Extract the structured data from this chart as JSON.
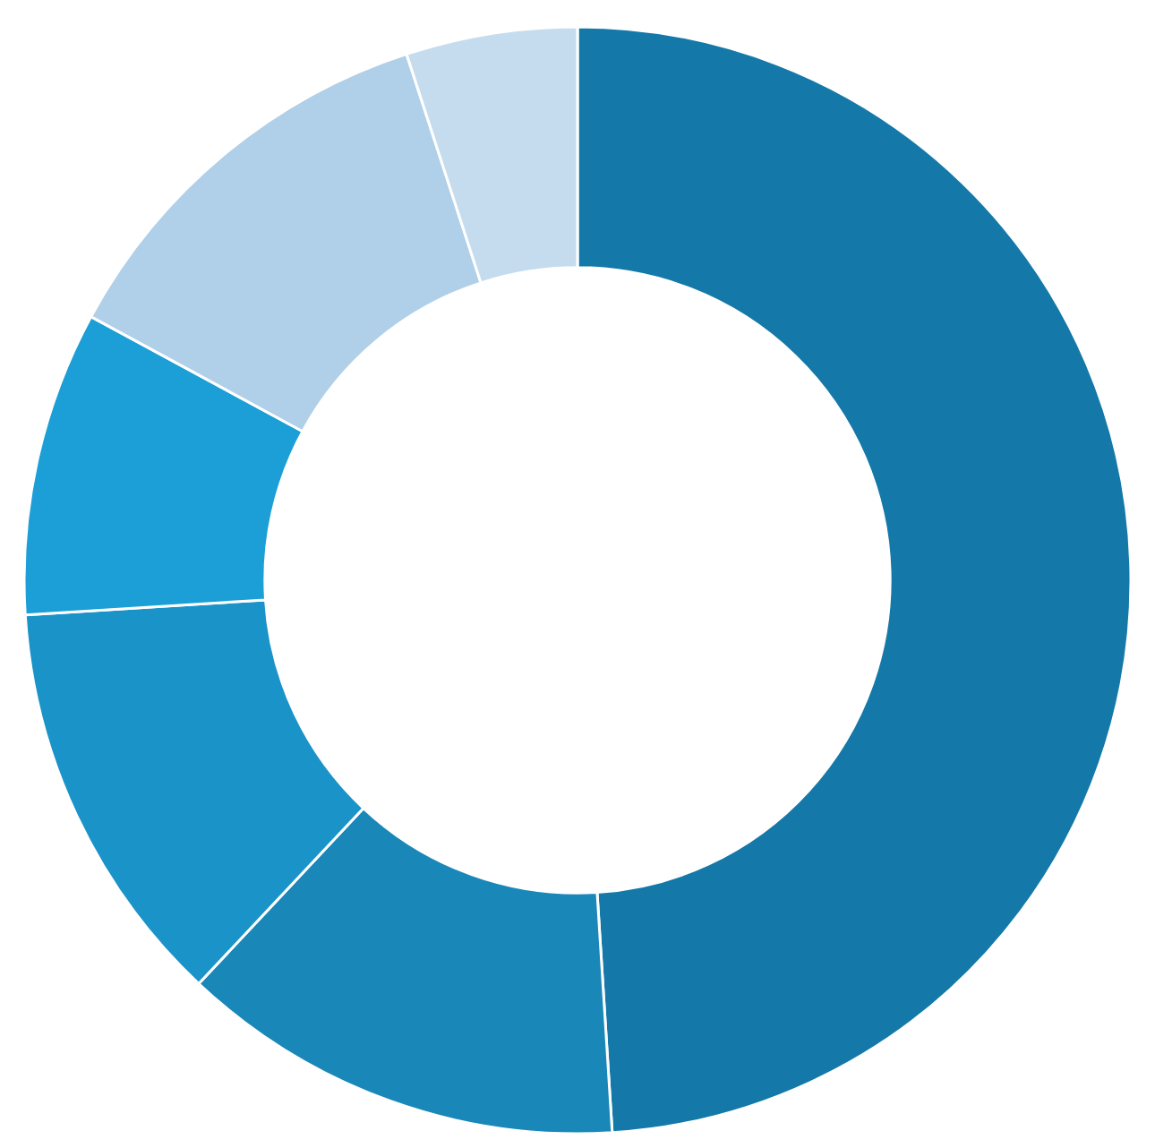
{
  "chart_data": {
    "type": "donut",
    "categories": [
      null,
      null,
      null,
      null,
      null,
      null
    ],
    "values": [
      49.0,
      13.0,
      12.0,
      8.9,
      12.1,
      5.0
    ],
    "colors": [
      "#1479a8",
      "#1a87b9",
      "#1a93c8",
      "#1c9fd6",
      "#b0cfe8",
      "#c5dcee"
    ],
    "legend": false
  }
}
